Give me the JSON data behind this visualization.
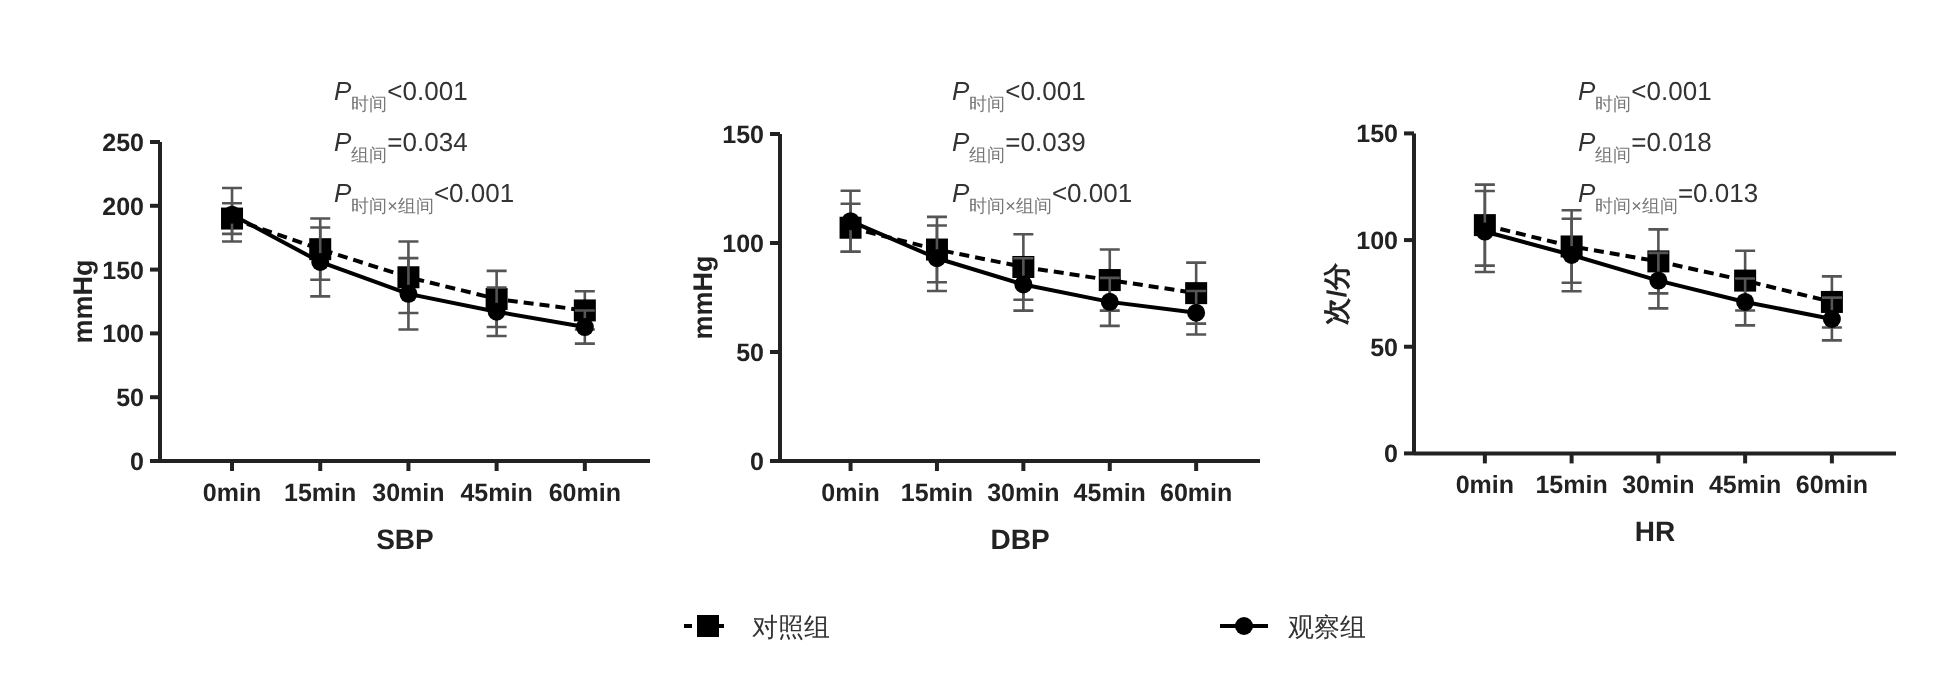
{
  "chart_data": [
    {
      "type": "line",
      "xlabel": "SBP",
      "ylabel": "mmHg",
      "categories": [
        "0min",
        "15min",
        "30min",
        "45min",
        "60min"
      ],
      "ylim": [
        0,
        250
      ],
      "yticks": [
        0,
        50,
        100,
        150,
        200,
        250
      ],
      "grid": false,
      "legend": false,
      "annotations": [
        "*P*$_{时间}$<0.001",
        "*P*$_{组间}$=0.034",
        "*P*$_{时间×组间}$<0.001"
      ],
      "series": [
        {
          "color": "#000000",
          "marker": "square",
          "line_style": "dashed",
          "values": [
            190,
            166,
            144,
            127,
            118
          ],
          "errors": [
            12,
            24,
            28,
            22,
            15
          ]
        },
        {
          "color": "#000000",
          "marker": "circle",
          "line_style": "solid",
          "values": [
            193,
            156,
            131,
            117,
            105
          ],
          "errors": [
            21,
            27,
            28,
            19,
            13
          ]
        }
      ]
    },
    {
      "type": "line",
      "xlabel": "DBP",
      "ylabel": "mmHg",
      "categories": [
        "0min",
        "15min",
        "30min",
        "45min",
        "60min"
      ],
      "ylim": [
        0,
        150
      ],
      "yticks": [
        0,
        50,
        100,
        150
      ],
      "grid": false,
      "legend": "bottom",
      "annotations": [
        "*P*$_{时间}$<0.001",
        "*P*$_{组间}$=0.039",
        "*P*$_{时间×组间}$<0.001"
      ],
      "series": [
        {
          "name": "对照组",
          "color": "#000000",
          "marker": "square",
          "line_style": "dashed",
          "values": [
            107,
            97,
            89,
            83,
            77
          ],
          "errors": [
            11,
            15,
            15,
            14,
            14
          ]
        },
        {
          "name": "观察组",
          "color": "#000000",
          "marker": "circle",
          "line_style": "solid",
          "values": [
            110,
            93,
            81,
            73,
            68
          ],
          "errors": [
            14,
            15,
            12,
            11,
            10
          ]
        }
      ]
    },
    {
      "type": "line",
      "xlabel": "HR",
      "ylabel": "次/分",
      "categories": [
        "0min",
        "15min",
        "30min",
        "45min",
        "60min"
      ],
      "ylim": [
        0,
        150
      ],
      "yticks": [
        0,
        50,
        100,
        150
      ],
      "grid": false,
      "legend": false,
      "annotations": [
        "*P*$_{时间}$<0.001",
        "*P*$_{组间}$=0.018",
        "*P*$_{时间×组间}$=0.013"
      ],
      "series": [
        {
          "color": "#000000",
          "marker": "square",
          "line_style": "dashed",
          "values": [
            107,
            97,
            90,
            81,
            71
          ],
          "errors": [
            19,
            17,
            15,
            14,
            12
          ]
        },
        {
          "color": "#000000",
          "marker": "circle",
          "line_style": "solid",
          "values": [
            104,
            93,
            81,
            71,
            63
          ],
          "errors": [
            19,
            17,
            13,
            11,
            10
          ]
        }
      ]
    }
  ]
}
